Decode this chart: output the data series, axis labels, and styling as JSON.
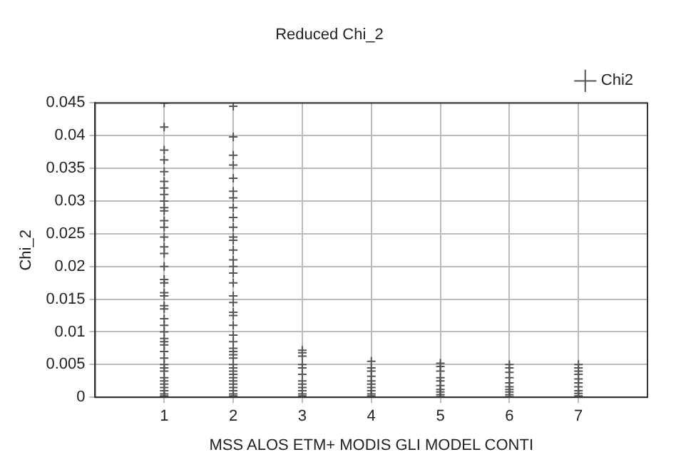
{
  "chart_data": {
    "type": "scatter",
    "title": "Reduced Chi_2",
    "xlabel": "MSS ALOS ETM+ MODIS GLI MODEL CONTI",
    "ylabel": "Chi_2",
    "xlim": [
      0,
      8
    ],
    "xticks": [
      1,
      2,
      3,
      4,
      5,
      6,
      7
    ],
    "ylim": [
      0,
      0.045
    ],
    "yticks": [
      0,
      0.005,
      0.01,
      0.015,
      0.02,
      0.025,
      0.03,
      0.035,
      0.04,
      0.045
    ],
    "grid": true,
    "legend": "top right",
    "marker": "cross",
    "series": [
      {
        "name": "Chi2",
        "color": "#555555",
        "x": [
          1,
          1,
          1,
          1,
          1,
          1,
          1,
          1,
          1,
          1,
          1,
          1,
          1,
          1,
          1,
          1,
          1,
          1,
          1,
          1,
          1,
          1,
          1,
          1,
          1,
          1,
          1,
          1,
          1,
          1,
          1,
          1,
          1,
          1,
          1,
          1,
          1,
          1,
          1,
          1,
          1,
          2,
          2,
          2,
          2,
          2,
          2,
          2,
          2,
          2,
          2,
          2,
          2,
          2,
          2,
          2,
          2,
          2,
          2,
          2,
          2,
          2,
          2,
          2,
          2,
          2,
          2,
          2,
          2,
          2,
          2,
          2,
          2,
          2,
          2,
          2,
          2,
          2,
          2,
          2,
          3,
          3,
          3,
          3,
          3,
          3,
          3,
          3,
          3,
          3,
          3,
          3,
          4,
          4,
          4,
          4,
          4,
          4,
          4,
          4,
          4,
          4,
          5,
          5,
          5,
          5,
          5,
          5,
          5,
          5,
          5,
          5,
          6,
          6,
          6,
          6,
          6,
          6,
          6,
          6,
          6,
          6,
          7,
          7,
          7,
          7,
          7,
          7,
          7,
          7,
          7,
          7
        ],
        "values": [
          0.045,
          0.0413,
          0.0378,
          0.0363,
          0.0345,
          0.033,
          0.032,
          0.031,
          0.03,
          0.029,
          0.0285,
          0.027,
          0.026,
          0.0245,
          0.023,
          0.022,
          0.02,
          0.018,
          0.0175,
          0.016,
          0.0155,
          0.014,
          0.0135,
          0.012,
          0.011,
          0.01,
          0.009,
          0.0085,
          0.008,
          0.007,
          0.006,
          0.005,
          0.0045,
          0.004,
          0.003,
          0.0025,
          0.002,
          0.0015,
          0.001,
          0.0005,
          0.0002,
          0.0445,
          0.0398,
          0.037,
          0.0355,
          0.0335,
          0.0315,
          0.0305,
          0.029,
          0.0275,
          0.026,
          0.0245,
          0.024,
          0.0225,
          0.021,
          0.02,
          0.019,
          0.0175,
          0.0155,
          0.0145,
          0.013,
          0.0125,
          0.011,
          0.0095,
          0.0085,
          0.0075,
          0.007,
          0.0065,
          0.006,
          0.005,
          0.0045,
          0.004,
          0.0035,
          0.003,
          0.0025,
          0.002,
          0.0015,
          0.001,
          0.0005,
          0.0002,
          0.0072,
          0.0068,
          0.0063,
          0.005,
          0.0045,
          0.0035,
          0.0025,
          0.002,
          0.0015,
          0.001,
          0.0005,
          0.0002,
          0.0055,
          0.0045,
          0.004,
          0.0032,
          0.0025,
          0.002,
          0.0015,
          0.001,
          0.0005,
          0.0002,
          0.0052,
          0.0047,
          0.004,
          0.003,
          0.0025,
          0.0018,
          0.0012,
          0.0008,
          0.0004,
          0.0001,
          0.005,
          0.0045,
          0.0038,
          0.003,
          0.0022,
          0.0016,
          0.0012,
          0.0008,
          0.0004,
          0.0001,
          0.005,
          0.0045,
          0.004,
          0.0035,
          0.0028,
          0.0022,
          0.0016,
          0.001,
          0.0006,
          0.0002
        ]
      }
    ]
  }
}
